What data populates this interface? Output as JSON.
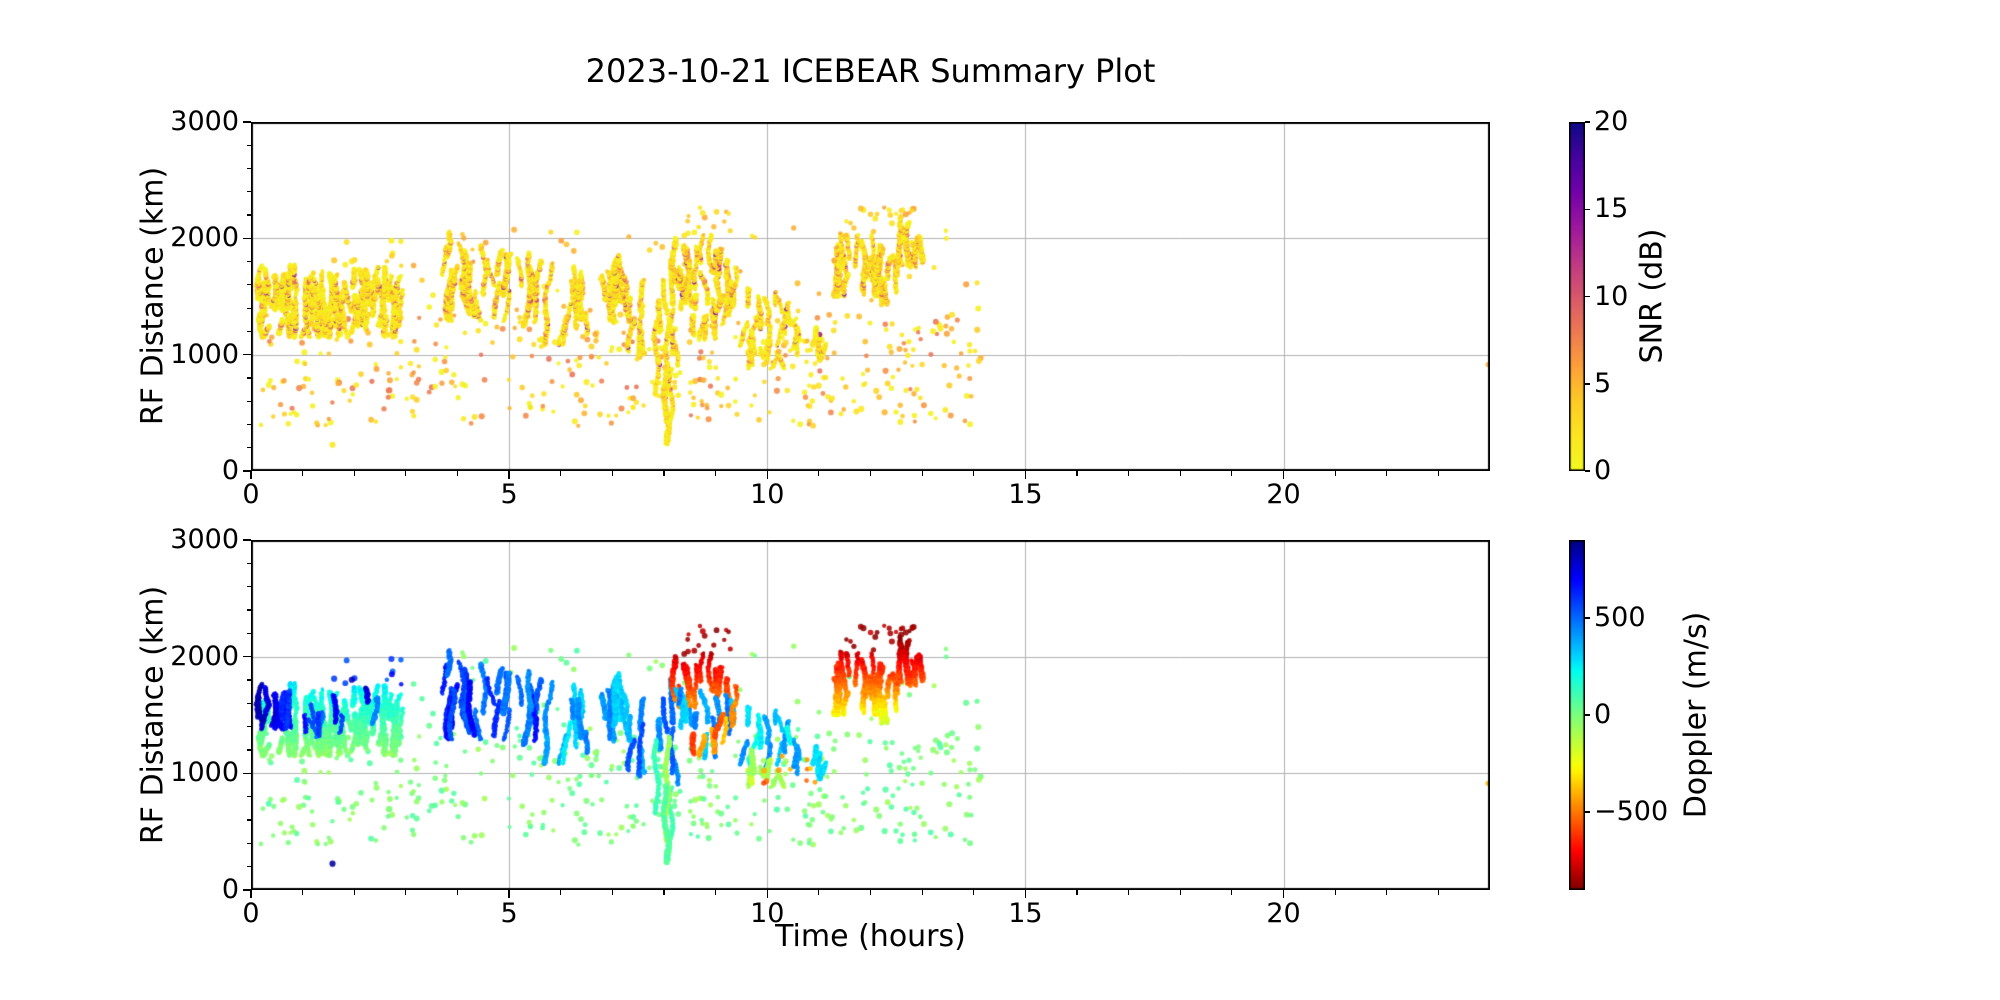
{
  "figure": {
    "background": "#ffffff",
    "grid_color": "#b0b0b0",
    "spine_color": "#000000",
    "text_color": "#000000"
  },
  "chart_data": {
    "type": "scatter",
    "title": "2023-10-21 ICEBEAR Summary Plot",
    "xlabel": "Time (hours)",
    "ylabel": "RF Distance (km)",
    "xlim": [
      0,
      24
    ],
    "ylim": [
      0,
      3000
    ],
    "xticks": [
      0,
      5,
      10,
      15,
      20
    ],
    "xtick_labels": [
      "0",
      "5",
      "10",
      "15",
      "20"
    ],
    "yticks": [
      0,
      1000,
      2000,
      3000
    ],
    "ytick_labels": [
      "0",
      "1000",
      "2000",
      "3000"
    ],
    "x_minor_step_hours": 1,
    "y_minor_step_km": 200,
    "grid": true,
    "legend": "none",
    "subplots": [
      {
        "id": "snr",
        "color_by": "snr",
        "colormap": "plasma_r",
        "colorbar": {
          "label": "SNR (dB)",
          "range": [
            0,
            20
          ],
          "ticks": [
            0,
            5,
            10,
            15,
            20
          ],
          "tick_labels": [
            "0",
            "5",
            "10",
            "15",
            "20"
          ]
        }
      },
      {
        "id": "doppler",
        "color_by": "doppler",
        "colormap": "jet_r",
        "colorbar": {
          "label": "Doppler (m/s)",
          "range": [
            -900,
            900
          ],
          "ticks": [
            500,
            0,
            -500
          ],
          "tick_labels": [
            "500",
            "0",
            "−500"
          ]
        }
      }
    ],
    "clusters": [
      {
        "name": "background-dots-low",
        "kind": "dots",
        "t": [
          0.15,
          14.15
        ],
        "km": [
          380,
          1350
        ],
        "n": 430,
        "snr": [
          0.5,
          8.5
        ],
        "dop": [
          -85,
          85
        ]
      },
      {
        "name": "background-dots-high",
        "kind": "dots",
        "t": [
          3.1,
          14.1
        ],
        "km": [
          1350,
          2100
        ],
        "n": 58,
        "snr": [
          0.5,
          7
        ],
        "dop": [
          -90,
          90
        ]
      },
      {
        "name": "band-a-green",
        "kind": "streaks",
        "t": [
          0.2,
          2.9
        ],
        "km": [
          1150,
          1780
        ],
        "n": 80,
        "len": [
          120,
          330
        ],
        "snr": [
          0.5,
          4
        ],
        "core_snr": [
          6,
          11
        ],
        "dop_by_km": [
          1150,
          1780,
          -40,
          260
        ]
      },
      {
        "name": "band-a-blue-start",
        "kind": "streaks",
        "t": [
          0.15,
          0.8
        ],
        "km": [
          1380,
          1850
        ],
        "n": 12,
        "len": [
          150,
          330
        ],
        "snr": [
          0.5,
          4
        ],
        "core_snr": [
          6,
          10
        ],
        "dop": [
          520,
          840
        ]
      },
      {
        "name": "band-a-blue-mid",
        "kind": "streaks",
        "t": [
          1.0,
          2.75
        ],
        "km": [
          1300,
          1770
        ],
        "n": 9,
        "len": [
          120,
          260
        ],
        "snr": [
          0.5,
          4
        ],
        "core_snr": [
          6,
          10
        ],
        "dop": [
          430,
          760
        ]
      },
      {
        "name": "band-a-blue-dots",
        "kind": "dots",
        "t": [
          1.15,
          3.45
        ],
        "km": [
          1740,
          1980
        ],
        "n": 11,
        "snr": [
          1,
          5
        ],
        "dop": [
          480,
          820
        ]
      },
      {
        "name": "cluster-b-blue",
        "kind": "streaks",
        "t": [
          3.72,
          4.4
        ],
        "km": [
          1290,
          2070
        ],
        "n": 11,
        "len": [
          180,
          500
        ],
        "snr": [
          0.5,
          5
        ],
        "core_snr": [
          6,
          11
        ],
        "dop": [
          480,
          730
        ]
      },
      {
        "name": "cluster-c-blue",
        "kind": "streaks",
        "t": [
          4.45,
          5.55
        ],
        "km": [
          1240,
          2010
        ],
        "n": 14,
        "len": [
          150,
          450
        ],
        "snr": [
          0.5,
          5
        ],
        "core_snr": [
          6,
          11
        ],
        "dop": [
          420,
          680
        ]
      },
      {
        "name": "cluster-d-cyan",
        "kind": "streaks",
        "t": [
          5.6,
          7.15
        ],
        "km": [
          1080,
          1980
        ],
        "n": 17,
        "len": [
          150,
          450
        ],
        "snr": [
          0.5,
          5
        ],
        "core_snr": [
          6,
          10
        ],
        "dop": [
          260,
          500
        ]
      },
      {
        "name": "cluster-e-cyanblue",
        "kind": "streaks",
        "t": [
          7.2,
          8.25
        ],
        "km": [
          900,
          1900
        ],
        "n": 14,
        "len": [
          150,
          420
        ],
        "snr": [
          0.5,
          5
        ],
        "core_snr": [
          6,
          10
        ],
        "dop": [
          300,
          560
        ]
      },
      {
        "name": "deep-plunge",
        "kind": "streaks",
        "t": [
          7.82,
          8.14
        ],
        "km": [
          230,
          1430
        ],
        "n": 4,
        "len": [
          600,
          1050
        ],
        "snr": [
          0.5,
          4
        ],
        "core_snr": [
          5,
          8
        ],
        "dop": [
          -120,
          140
        ]
      },
      {
        "name": "cluster-f-red-high",
        "kind": "streaks",
        "t": [
          7.85,
          9.45
        ],
        "km": [
          1560,
          2130
        ],
        "n": 15,
        "len": [
          140,
          380
        ],
        "snr": [
          0.5,
          6
        ],
        "core_snr": [
          6,
          11
        ],
        "dop_by_km": [
          1550,
          2150,
          -430,
          -880
        ]
      },
      {
        "name": "cluster-f-darkred-dots",
        "kind": "dots",
        "t": [
          8.1,
          9.35
        ],
        "km": [
          1990,
          2265
        ],
        "n": 15,
        "snr": [
          1,
          6
        ],
        "dop": [
          -900,
          -760
        ]
      },
      {
        "name": "cluster-g-cyan",
        "kind": "streaks",
        "t": [
          8.3,
          9.45
        ],
        "km": [
          1130,
          1820
        ],
        "n": 12,
        "len": [
          120,
          350
        ],
        "snr": [
          0.5,
          5
        ],
        "core_snr": [
          6,
          10
        ],
        "dop": [
          250,
          490
        ]
      },
      {
        "name": "cluster-g-orange",
        "kind": "streaks",
        "t": [
          8.55,
          9.5
        ],
        "km": [
          1150,
          1700
        ],
        "n": 7,
        "len": [
          100,
          260
        ],
        "snr": [
          0.5,
          5
        ],
        "core_snr": [
          6,
          9
        ],
        "dop": [
          -620,
          -330
        ]
      },
      {
        "name": "cluster-h-cyan",
        "kind": "streaks",
        "t": [
          9.55,
          10.45
        ],
        "km": [
          1020,
          1580
        ],
        "n": 11,
        "len": [
          120,
          300
        ],
        "snr": [
          0.5,
          5
        ],
        "core_snr": [
          6,
          9
        ],
        "dop": [
          200,
          430
        ]
      },
      {
        "name": "cluster-h-yellowgreen",
        "kind": "streaks",
        "t": [
          9.6,
          10.35
        ],
        "km": [
          880,
          1260
        ],
        "n": 9,
        "len": [
          80,
          220
        ],
        "snr": [
          0.5,
          4
        ],
        "core_snr": [
          5,
          8
        ],
        "dop": [
          -260,
          -40
        ]
      },
      {
        "name": "cluster-h-orange-dots",
        "kind": "dots",
        "t": [
          9.9,
          10.45
        ],
        "km": [
          900,
          1160
        ],
        "n": 6,
        "snr": [
          1,
          6
        ],
        "dop": [
          -600,
          -380
        ]
      },
      {
        "name": "cluster-i-cyan",
        "kind": "streaks",
        "t": [
          10.5,
          11.08
        ],
        "km": [
          950,
          1420
        ],
        "n": 7,
        "len": [
          90,
          240
        ],
        "snr": [
          0.5,
          4
        ],
        "core_snr": [
          5,
          8
        ],
        "dop": [
          240,
          450
        ]
      },
      {
        "name": "cluster-i-orange-dots",
        "kind": "dots",
        "t": [
          10.45,
          10.95
        ],
        "km": [
          890,
          1160
        ],
        "n": 5,
        "snr": [
          1,
          6
        ],
        "dop": [
          -560,
          -350
        ]
      },
      {
        "name": "cluster-j-left-red",
        "kind": "streaks",
        "t": [
          11.32,
          12.2
        ],
        "km": [
          1500,
          2080
        ],
        "n": 20,
        "len": [
          180,
          480
        ],
        "snr": [
          0.5,
          6
        ],
        "core_snr": [
          6,
          11
        ],
        "dop_by_km": [
          1450,
          2130,
          -220,
          -850
        ]
      },
      {
        "name": "cluster-j-mid-red",
        "kind": "streaks",
        "t": [
          12.1,
          12.55
        ],
        "km": [
          1430,
          1950
        ],
        "n": 8,
        "len": [
          160,
          400
        ],
        "snr": [
          0.5,
          6
        ],
        "core_snr": [
          6,
          10
        ],
        "dop_by_km": [
          1430,
          1950,
          -150,
          -700
        ]
      },
      {
        "name": "cluster-j-right-darkred",
        "kind": "streaks",
        "t": [
          12.55,
          12.98
        ],
        "km": [
          1750,
          2180
        ],
        "n": 8,
        "len": [
          180,
          380
        ],
        "snr": [
          0.5,
          6
        ],
        "core_snr": [
          6,
          11
        ],
        "dop_by_km": [
          1720,
          2200,
          -500,
          -900
        ]
      },
      {
        "name": "cluster-j-rim-dots",
        "kind": "dots",
        "t": [
          11.35,
          12.5
        ],
        "km": [
          2020,
          2270
        ],
        "n": 14,
        "snr": [
          1,
          6
        ],
        "dop": [
          -900,
          -770
        ]
      },
      {
        "name": "cluster-j-right-rim-dots",
        "kind": "dots",
        "t": [
          12.55,
          12.95
        ],
        "km": [
          2150,
          2290
        ],
        "n": 8,
        "snr": [
          1,
          6
        ],
        "dop": [
          -900,
          -800
        ]
      },
      {
        "name": "lone-navy-dot",
        "kind": "dots",
        "t": [
          1.52,
          1.58
        ],
        "km": [
          195,
          230
        ],
        "n": 1,
        "snr": [
          1,
          2
        ],
        "dop": [
          820,
          880
        ]
      },
      {
        "name": "edge-orange-dot",
        "kind": "dots",
        "t": [
          23.9,
          23.98
        ],
        "km": [
          910,
          950
        ],
        "n": 1,
        "snr": [
          5,
          6
        ],
        "dop": [
          -420,
          -380
        ]
      }
    ]
  }
}
